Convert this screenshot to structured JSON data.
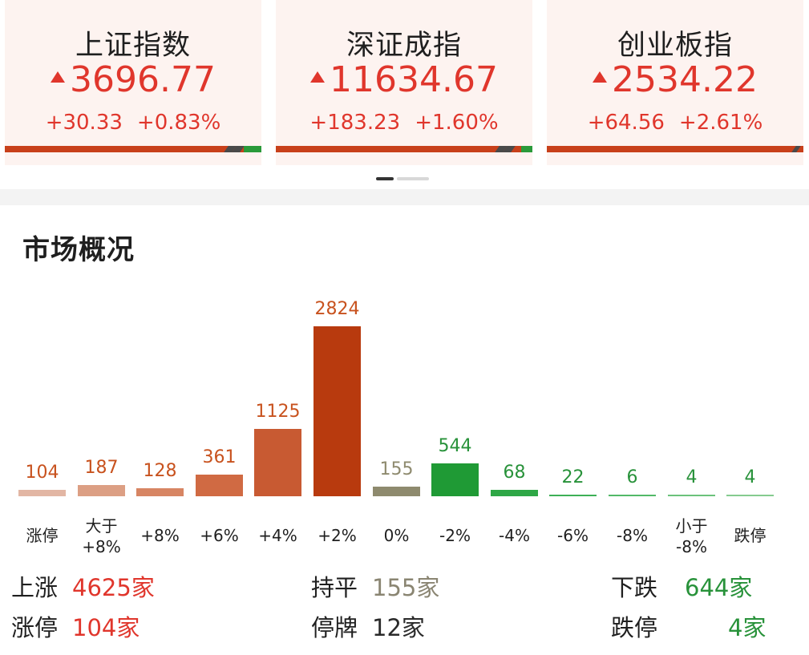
{
  "indices": [
    {
      "name": "上证指数",
      "price": "3696.77",
      "change": "+30.33",
      "percent": "+0.83%"
    },
    {
      "name": "深证成指",
      "price": "11634.67",
      "change": "+183.23",
      "percent": "+1.60%"
    },
    {
      "name": "创业板指",
      "price": "2534.22",
      "change": "+64.56",
      "percent": "+2.61%"
    }
  ],
  "section_title": "市场概况",
  "chart_data": {
    "type": "bar",
    "categories": [
      "涨停",
      "大于\n+8%",
      "+8%",
      "+6%",
      "+4%",
      "+2%",
      "0%",
      "-2%",
      "-4%",
      "-6%",
      "-8%",
      "小于\n-8%",
      "跌停"
    ],
    "values": [
      104,
      187,
      128,
      361,
      1125,
      2824,
      155,
      544,
      68,
      22,
      6,
      4,
      4
    ],
    "colors": [
      "#e2b6a4",
      "#dc9f84",
      "#d78563",
      "#d06a43",
      "#c85a32",
      "#b83a0e",
      "#8e8a6e",
      "#1f9a35",
      "#2ea746",
      "#3db056",
      "#52b968",
      "#6cc27b",
      "#85cb8f"
    ],
    "label_colors": [
      "#c8521e",
      "#c8521e",
      "#c8521e",
      "#c8521e",
      "#c8521e",
      "#c8521e",
      "#8e8a6e",
      "#28923a",
      "#28923a",
      "#28923a",
      "#28923a",
      "#28923a",
      "#28923a"
    ]
  },
  "summary": {
    "up_label": "上涨",
    "up_value": "4625家",
    "flat_label": "持平",
    "flat_value": "155家",
    "down_label": "下跌",
    "down_value": "644家",
    "limit_up_label": "涨停",
    "limit_up_value": "104家",
    "suspended_label": "停牌",
    "suspended_value": "12家",
    "limit_down_label": "跌停",
    "limit_down_value": "4家"
  }
}
